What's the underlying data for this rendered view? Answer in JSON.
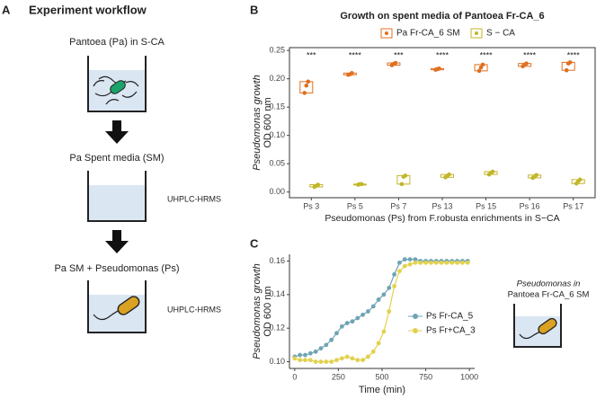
{
  "panels": [
    "A",
    "B",
    "C"
  ],
  "workflow": {
    "title": "Experiment workflow",
    "step1": "Pantoea (Pa) in S-CA",
    "step2": "Pa Spent media (SM)",
    "step3": "Pa SM + Pseudomonas (Ps)",
    "analysis": [
      "UHPLC-HRMS",
      "UHPLC-HRMS"
    ]
  },
  "inset": [
    "Pseudomonas in",
    "Pantoea Fr-CA_6 SM"
  ],
  "chart_data": [
    {
      "type": "box",
      "title": "Growth on spent media of Pantoea Fr-CA_6",
      "y_label": [
        "Pseudomonas growth",
        "OD 600 nm"
      ],
      "x_label": "Pseudomonas (Ps) from F.robusta enrichments in S−CA",
      "categories": [
        "Ps 3",
        "Ps 5",
        "Ps 7",
        "Ps 13",
        "Ps 15",
        "Ps 16",
        "Ps 17"
      ],
      "annotations": [
        "***",
        "****",
        "***",
        "****",
        "****",
        "****",
        "****"
      ],
      "legend": "top",
      "ylim": [
        -0.01,
        0.255
      ],
      "yticks": [
        {
          "value": 0,
          "label": "0.00"
        },
        0.05,
        {
          "value": 0.1,
          "label": "0.10"
        },
        0.15,
        {
          "value": 0.2,
          "label": "0.20"
        },
        0.25
      ],
      "series": [
        {
          "name": "Pa Fr-CA_6 SM",
          "color": "#e07020",
          "values": [
            [
              0.175,
              0.188,
              0.195
            ],
            [
              0.207,
              0.208,
              0.21
            ],
            [
              0.224,
              0.226,
              0.228
            ],
            [
              0.216,
              0.217,
              0.218
            ],
            [
              0.214,
              0.22,
              0.225
            ],
            [
              0.222,
              0.225,
              0.227
            ],
            [
              0.215,
              0.227,
              0.229
            ]
          ]
        },
        {
          "name": "S − CA",
          "color": "#c2b62a",
          "values": [
            [
              0.009,
              0.011,
              0.013
            ],
            [
              0.013,
              0.014,
              0.014
            ],
            [
              0.014,
              0.027,
              0.029
            ],
            [
              0.026,
              0.028,
              0.031
            ],
            [
              0.031,
              0.034,
              0.036
            ],
            [
              0.025,
              0.027,
              0.03
            ],
            [
              0.015,
              0.019,
              0.022
            ]
          ]
        }
      ]
    },
    {
      "type": "line",
      "y_label": [
        "Pseudomonas growth",
        "OD 600 nm"
      ],
      "x_label": "Time (min)",
      "legend": "right",
      "x": [
        0,
        30,
        60,
        90,
        120,
        150,
        180,
        210,
        240,
        270,
        300,
        330,
        360,
        390,
        420,
        450,
        480,
        510,
        540,
        570,
        600,
        630,
        660,
        690,
        720,
        750,
        780,
        810,
        840,
        870,
        900,
        930,
        960,
        990
      ],
      "xlim": [
        -30,
        1030
      ],
      "xticks": [
        0,
        250,
        500,
        750,
        1000
      ],
      "ylim": [
        0.096,
        0.164
      ],
      "yticks": [
        {
          "value": 0.1,
          "label": "0.10"
        },
        0.12,
        0.14,
        0.16
      ],
      "series": [
        {
          "name": "Ps Fr-CA_5",
          "color": "#6fa4b4",
          "values": [
            0.103,
            0.104,
            0.104,
            0.105,
            0.106,
            0.108,
            0.11,
            0.113,
            0.117,
            0.121,
            0.123,
            0.124,
            0.126,
            0.128,
            0.13,
            0.133,
            0.137,
            0.14,
            0.144,
            0.152,
            0.159,
            0.161,
            0.161,
            0.161,
            0.16,
            0.16,
            0.16,
            0.16,
            0.16,
            0.16,
            0.16,
            0.16,
            0.16,
            0.16
          ]
        },
        {
          "name": "Ps Fr+CA_3",
          "color": "#e2d14e",
          "values": [
            0.102,
            0.101,
            0.101,
            0.101,
            0.1,
            0.1,
            0.1,
            0.1,
            0.101,
            0.102,
            0.103,
            0.102,
            0.101,
            0.101,
            0.103,
            0.106,
            0.111,
            0.118,
            0.13,
            0.145,
            0.154,
            0.157,
            0.158,
            0.159,
            0.159,
            0.159,
            0.159,
            0.159,
            0.159,
            0.159,
            0.159,
            0.159,
            0.159,
            0.159
          ]
        }
      ]
    }
  ]
}
